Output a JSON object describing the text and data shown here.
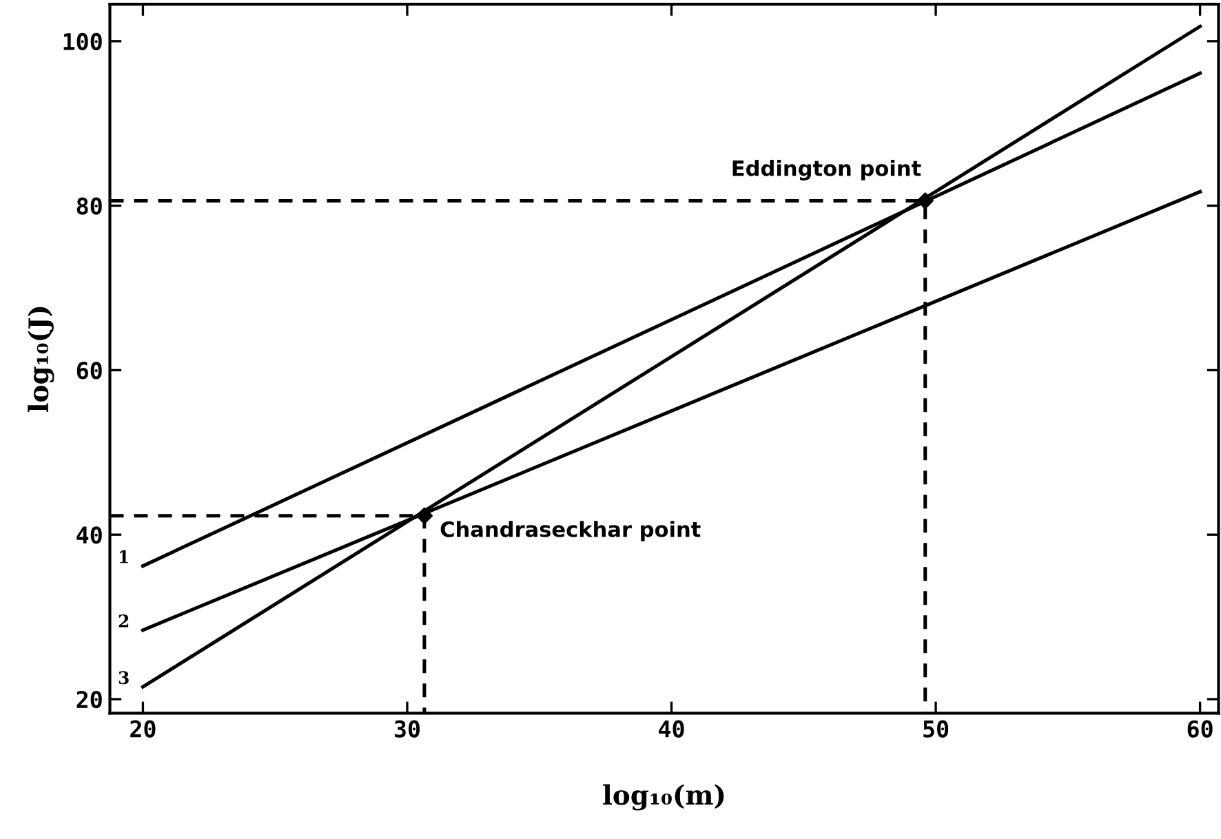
{
  "chart_data": {
    "type": "line",
    "xlabel": "log₁₀(m)",
    "ylabel": "log₁₀(J)",
    "xlim": [
      18.75,
      60.7
    ],
    "ylim": [
      18.3,
      104.5
    ],
    "xticks": [
      20,
      30,
      40,
      50,
      60
    ],
    "yticks": [
      20,
      40,
      60,
      80,
      100
    ],
    "grid": false,
    "legend": false,
    "series": [
      {
        "color": "#000000",
        "x": [
          20,
          60
        ],
        "values": [
          36.2,
          96.1
        ],
        "line_style": "solid",
        "marker": "none"
      },
      {
        "color": "#000000",
        "x": [
          20,
          60
        ],
        "values": [
          28.4,
          81.7
        ],
        "line_style": "solid",
        "marker": "none"
      },
      {
        "color": "#000000",
        "x": [
          20,
          60
        ],
        "values": [
          21.5,
          101.8
        ],
        "line_style": "solid",
        "marker": "none"
      },
      {
        "color": "#000000",
        "x": [
          18.75,
          30.65,
          30.65
        ],
        "values": [
          42.3,
          42.3,
          18.3
        ],
        "line_style": "dashed",
        "marker": "none"
      },
      {
        "color": "#000000",
        "x": [
          18.75,
          49.6,
          49.6
        ],
        "values": [
          80.6,
          80.6,
          18.3
        ],
        "line_style": "dashed",
        "marker": "none"
      },
      {
        "type": "scatter",
        "color": "#000000",
        "x": [
          30.65,
          49.6
        ],
        "values": [
          42.3,
          80.6
        ],
        "marker": "diamond"
      }
    ],
    "annotations": [
      {
        "text": "1",
        "x": 20,
        "y": 36.2
      },
      {
        "text": "2",
        "x": 20,
        "y": 28.4
      },
      {
        "text": "3",
        "x": 20,
        "y": 21.5
      },
      {
        "text": "Chandraseckhar point",
        "x": 30.65,
        "y": 42.3
      },
      {
        "text": "Eddington point",
        "x": 49.6,
        "y": 80.6
      }
    ]
  }
}
